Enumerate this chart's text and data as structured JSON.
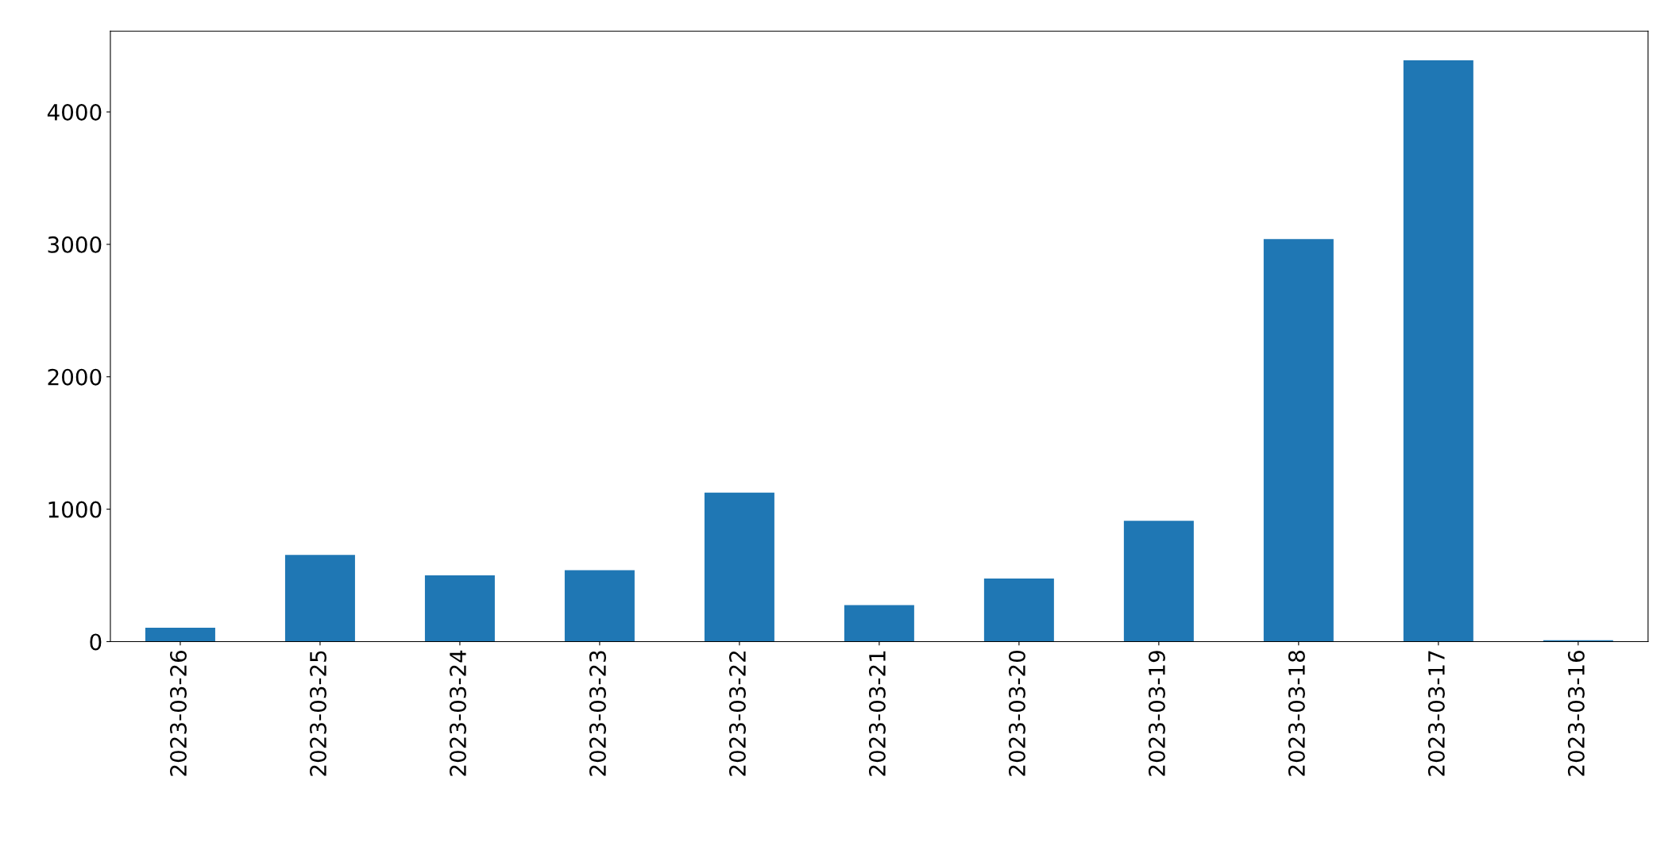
{
  "chart_data": {
    "type": "bar",
    "categories": [
      "2023-03-26",
      "2023-03-25",
      "2023-03-24",
      "2023-03-23",
      "2023-03-22",
      "2023-03-21",
      "2023-03-20",
      "2023-03-19",
      "2023-03-18",
      "2023-03-17",
      "2023-03-16"
    ],
    "values": [
      105,
      655,
      500,
      540,
      1125,
      275,
      477,
      913,
      3040,
      4390,
      10
    ],
    "color": "#1f77b4",
    "ylim": [
      0,
      4610
    ],
    "yticks": [
      0,
      1000,
      2000,
      3000,
      4000
    ],
    "grid": false,
    "legend": false
  }
}
